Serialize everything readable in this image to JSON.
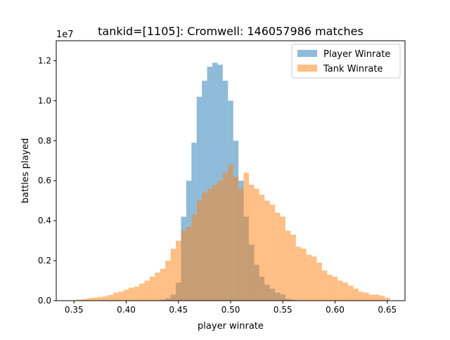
{
  "chart_data": {
    "type": "bar",
    "title": "tankid=[1105]: Cromwell: 146057986 matches",
    "xlabel": "player winrate",
    "ylabel": "battles played",
    "y_offset_label": "1e7",
    "y_scale": 10000000,
    "xlim": [
      0.333,
      0.667
    ],
    "ylim": [
      0,
      1.3
    ],
    "xticks": [
      "0.35",
      "0.40",
      "0.45",
      "0.50",
      "0.55",
      "0.60",
      "0.65"
    ],
    "yticks": [
      "0.0",
      "0.2",
      "0.4",
      "0.6",
      "0.8",
      "1.0",
      "1.2"
    ],
    "legend_position": "upper right",
    "bin_width": 0.005,
    "x": [
      0.35,
      0.355,
      0.36,
      0.365,
      0.37,
      0.375,
      0.38,
      0.385,
      0.39,
      0.395,
      0.4,
      0.405,
      0.41,
      0.415,
      0.42,
      0.425,
      0.43,
      0.435,
      0.44,
      0.445,
      0.45,
      0.455,
      0.46,
      0.465,
      0.47,
      0.475,
      0.48,
      0.485,
      0.49,
      0.495,
      0.5,
      0.505,
      0.51,
      0.515,
      0.52,
      0.525,
      0.53,
      0.535,
      0.54,
      0.545,
      0.55,
      0.555,
      0.56,
      0.565,
      0.57,
      0.575,
      0.58,
      0.585,
      0.59,
      0.595,
      0.6,
      0.605,
      0.61,
      0.615,
      0.62,
      0.625,
      0.63,
      0.635,
      0.64,
      0.645,
      0.65
    ],
    "series": [
      {
        "name": "Player Winrate",
        "color": "#1f77b4",
        "alpha": 0.5,
        "values": [
          0,
          0,
          0,
          0,
          0,
          0,
          0,
          0,
          0,
          0,
          0,
          0,
          0,
          0,
          0,
          0,
          0.002,
          0.005,
          0.012,
          0.03,
          0.09,
          0.42,
          0.6,
          0.79,
          1.02,
          1.1,
          1.17,
          1.19,
          1.18,
          1.1,
          1.0,
          0.8,
          0.6,
          0.42,
          0.28,
          0.18,
          0.12,
          0.08,
          0.06,
          0.04,
          0.03,
          0.01,
          0.005,
          0,
          0,
          0,
          0,
          0,
          0,
          0,
          0,
          0,
          0,
          0,
          0,
          0,
          0,
          0,
          0,
          0,
          0
        ]
      },
      {
        "name": "Tank Winrate",
        "color": "#ff7f0e",
        "alpha": 0.5,
        "values": [
          0.002,
          0.005,
          0.008,
          0.012,
          0.015,
          0.018,
          0.022,
          0.028,
          0.04,
          0.045,
          0.055,
          0.065,
          0.07,
          0.085,
          0.1,
          0.12,
          0.14,
          0.16,
          0.2,
          0.26,
          0.3,
          0.35,
          0.37,
          0.43,
          0.5,
          0.54,
          0.56,
          0.58,
          0.6,
          0.64,
          0.68,
          0.62,
          0.56,
          0.64,
          0.58,
          0.56,
          0.53,
          0.5,
          0.48,
          0.44,
          0.42,
          0.35,
          0.33,
          0.27,
          0.26,
          0.23,
          0.22,
          0.19,
          0.15,
          0.13,
          0.12,
          0.1,
          0.09,
          0.075,
          0.06,
          0.045,
          0.04,
          0.03,
          0.03,
          0.025,
          0.015
        ]
      }
    ]
  }
}
